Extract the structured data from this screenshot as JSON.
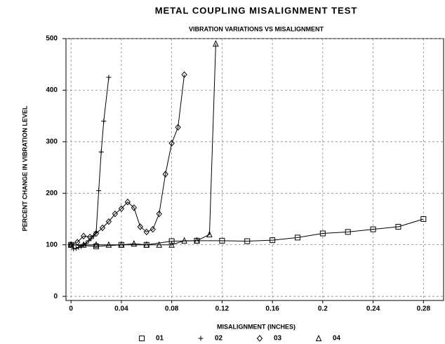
{
  "chart_data": {
    "type": "line",
    "title": "METAL COUPLING MISALIGNMENT TEST",
    "subtitle": "VIBRATION VARIATIONS VS MISALIGNMENT",
    "x_label": "MISALIGNMENT (INCHES)",
    "y_label": "PERCENT CHANGE IN VIBRATION LEVEL",
    "xlim": [
      -0.004,
      0.296
    ],
    "ylim": [
      -8,
      500
    ],
    "xticks": [
      0,
      0.04,
      0.08,
      0.12,
      0.16,
      0.2,
      0.24,
      0.28
    ],
    "yticks": [
      0,
      100,
      200,
      300,
      400,
      500
    ],
    "grid": true,
    "series": [
      {
        "name": "01",
        "color": "#000000",
        "marker": "square",
        "x": [
          0,
          0.02,
          0.04,
          0.06,
          0.08,
          0.1,
          0.12,
          0.14,
          0.16,
          0.18,
          0.2,
          0.22,
          0.24,
          0.26,
          0.28
        ],
        "values": [
          100,
          97,
          100,
          100,
          107,
          108,
          108,
          107,
          109,
          114,
          122,
          125,
          130,
          135,
          150
        ]
      },
      {
        "name": "02",
        "color": "#000000",
        "marker": "plus",
        "x": [
          0,
          0.002,
          0.004,
          0.006,
          0.008,
          0.01,
          0.012,
          0.014,
          0.016,
          0.018,
          0.02,
          0.022,
          0.024,
          0.026,
          0.03
        ],
        "values": [
          100,
          92,
          93,
          95,
          97,
          100,
          103,
          108,
          112,
          117,
          125,
          205,
          280,
          340,
          425
        ]
      },
      {
        "name": "03",
        "color": "#000000",
        "marker": "diamond",
        "x": [
          0,
          0.005,
          0.01,
          0.015,
          0.02,
          0.025,
          0.03,
          0.035,
          0.04,
          0.045,
          0.05,
          0.055,
          0.06,
          0.065,
          0.07,
          0.075,
          0.08,
          0.085,
          0.09
        ],
        "values": [
          100,
          105,
          117,
          115,
          122,
          133,
          145,
          160,
          170,
          183,
          172,
          135,
          125,
          130,
          160,
          237,
          297,
          328,
          430
        ]
      },
      {
        "name": "04",
        "color": "#000000",
        "marker": "triangle",
        "x": [
          0,
          0.01,
          0.02,
          0.03,
          0.04,
          0.05,
          0.06,
          0.07,
          0.08,
          0.09,
          0.1,
          0.11,
          0.115
        ],
        "values": [
          100,
          100,
          100,
          100,
          100,
          102,
          100,
          100,
          100,
          108,
          108,
          120,
          490
        ]
      }
    ]
  }
}
